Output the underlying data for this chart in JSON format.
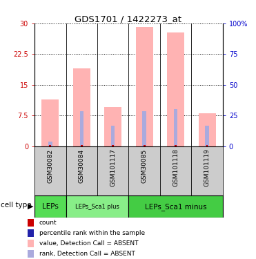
{
  "title": "GDS1701 / 1422273_at",
  "samples": [
    "GSM30082",
    "GSM30084",
    "GSM101117",
    "GSM30085",
    "GSM101118",
    "GSM101119"
  ],
  "bar_values": [
    11.5,
    19.0,
    9.5,
    29.2,
    27.8,
    8.0
  ],
  "rank_values": [
    1.2,
    8.5,
    5.0,
    8.5,
    9.0,
    5.0
  ],
  "count_values": [
    0.35,
    0.35,
    0.35,
    0.35,
    0.35,
    0.35
  ],
  "bar_color_absent": "#FFB3B3",
  "rank_color_absent": "#AAAADD",
  "count_color": "#CC0000",
  "ylim_left": [
    0,
    30
  ],
  "ylim_right": [
    0,
    100
  ],
  "yticks_left": [
    0,
    7.5,
    15,
    22.5,
    30
  ],
  "yticks_right": [
    0,
    25,
    50,
    75,
    100
  ],
  "ytick_labels_left": [
    "0",
    "7.5",
    "15",
    "22.5",
    "30"
  ],
  "ytick_labels_right": [
    "0",
    "25",
    "50",
    "75",
    "100%"
  ],
  "cell_types": [
    {
      "label": "LEPs",
      "start": 0,
      "end": 0,
      "color": "#55DD55"
    },
    {
      "label": "LEPs_Sca1 plus",
      "start": 1,
      "end": 2,
      "color": "#88EE88"
    },
    {
      "label": "LEPs_Sca1 minus",
      "start": 3,
      "end": 5,
      "color": "#44CC44"
    }
  ],
  "legend_items": [
    {
      "color": "#CC0000",
      "label": "count"
    },
    {
      "color": "#2222AA",
      "label": "percentile rank within the sample"
    },
    {
      "color": "#FFB3B3",
      "label": "value, Detection Call = ABSENT"
    },
    {
      "color": "#AAAADD",
      "label": "rank, Detection Call = ABSENT"
    }
  ],
  "bar_width": 0.55,
  "rank_bar_width": 0.12,
  "count_bar_width": 0.06,
  "bg_color": "#FFFFFF",
  "plot_bg": "#FFFFFF",
  "left_axis_color": "#CC0000",
  "right_axis_color": "#0000CC",
  "tick_label_area_color": "#CCCCCC"
}
